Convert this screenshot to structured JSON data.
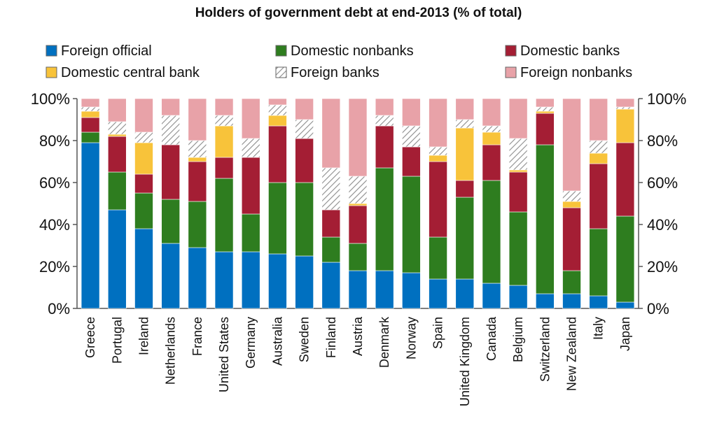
{
  "chart_data": {
    "type": "bar",
    "stacked": true,
    "title": "Holders of government debt at end-2013 (% of total)",
    "categories": [
      "Greece",
      "Portugal",
      "Ireland",
      "Netherlands",
      "France",
      "United States",
      "Germany",
      "Australia",
      "Sweden",
      "Finland",
      "Austria",
      "Denmark",
      "Norway",
      "Spain",
      "United Kingdom",
      "Canada",
      "Belgium",
      "Switzerland",
      "New Zealand",
      "Italy",
      "Japan"
    ],
    "series": [
      {
        "name": "Foreign official",
        "color": "#0070C0",
        "values": [
          79,
          47,
          38,
          31,
          29,
          27,
          27,
          26,
          25,
          22,
          18,
          18,
          17,
          14,
          14,
          12,
          11,
          7,
          7,
          6,
          3
        ]
      },
      {
        "name": "Domestic nonbanks",
        "color": "#2E7D1F",
        "values": [
          5,
          18,
          17,
          21,
          22,
          35,
          18,
          34,
          35,
          12,
          13,
          49,
          46,
          20,
          39,
          49,
          35,
          71,
          11,
          32,
          41
        ]
      },
      {
        "name": "Domestic banks",
        "color": "#A41E34",
        "values": [
          7,
          17,
          9,
          26,
          19,
          10,
          27,
          27,
          21,
          13,
          18,
          20,
          14,
          36,
          8,
          17,
          19,
          15,
          30,
          31,
          35
        ]
      },
      {
        "name": "Domestic central bank",
        "color": "#F8C33A",
        "values": [
          3,
          1,
          15,
          0,
          2,
          15,
          0,
          5,
          0,
          0,
          1,
          0,
          0,
          3,
          25,
          6,
          1,
          1,
          3,
          5,
          16
        ]
      },
      {
        "name": "Foreign banks",
        "color": "#F0F0F0",
        "pattern": "hatch",
        "values": [
          2,
          6,
          5,
          14,
          8,
          5,
          9,
          5,
          9,
          20,
          13,
          5,
          10,
          4,
          4,
          3,
          15,
          2,
          5,
          6,
          1
        ]
      },
      {
        "name": "Foreign nonbanks",
        "color": "#E8A2A8",
        "values": [
          4,
          11,
          16,
          8,
          20,
          8,
          19,
          3,
          10,
          33,
          37,
          8,
          13,
          23,
          10,
          13,
          19,
          4,
          44,
          20,
          4
        ]
      }
    ],
    "legend_order": [
      [
        "Foreign official",
        "Domestic nonbanks",
        "Domestic banks"
      ],
      [
        "Domestic central bank",
        "Foreign banks",
        "Foreign nonbanks"
      ]
    ],
    "ylim": [
      0,
      100
    ],
    "yticks": [
      "0%",
      "20%",
      "40%",
      "60%",
      "80%",
      "100%"
    ],
    "xlabel": "",
    "ylabel": "",
    "legend_position": "top",
    "grid": false,
    "secondary_axis": "right"
  }
}
